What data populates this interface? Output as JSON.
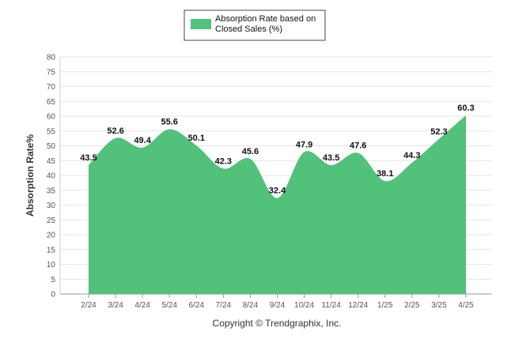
{
  "chart_data": {
    "type": "area",
    "categories": [
      "2/24",
      "3/24",
      "4/24",
      "5/24",
      "6/24",
      "7/24",
      "8/24",
      "9/24",
      "10/24",
      "11/24",
      "12/24",
      "1/25",
      "2/25",
      "3/25",
      "4/25"
    ],
    "series": [
      {
        "name": "Absorption Rate based on Closed Sales (%)",
        "values": [
          43.5,
          52.6,
          49.4,
          55.6,
          50.1,
          42.3,
          45.6,
          32.4,
          47.9,
          43.5,
          47.6,
          38.1,
          44.3,
          52.3,
          60.3
        ],
        "color": "#52c17c"
      }
    ],
    "data_labels": [
      "43.5",
      "52.6",
      "49.4",
      "55.6",
      "50.1",
      "42.3",
      "45.6",
      "32.4",
      "47.9",
      "43.5",
      "47.6",
      "38.1",
      "44.3",
      "52.3",
      "60.3"
    ],
    "ylabel": "Absorption Rate%",
    "xlabel": "",
    "ylim": [
      0,
      80
    ],
    "yticks": [
      0,
      5,
      10,
      15,
      20,
      25,
      30,
      35,
      40,
      45,
      50,
      55,
      60,
      65,
      70,
      75,
      80
    ],
    "grid": true,
    "legend": {
      "position": "top-center",
      "line1": "Absorption Rate based on",
      "line2": "Closed Sales (%)"
    },
    "credit": "Copyright © Trendgraphix, Inc."
  }
}
